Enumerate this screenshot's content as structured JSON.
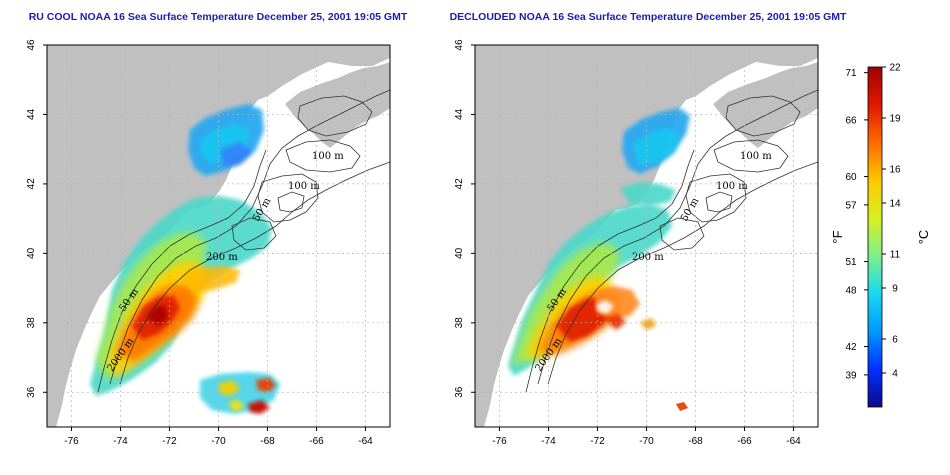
{
  "title_color": "#1c1cb4",
  "land_color": "#c0c0c0",
  "panels": [
    {
      "title": "RU COOL NOAA 16 Sea Surface Temperature December 25, 2001 19:05 GMT",
      "variant": "cool",
      "isobath_labels": [
        "100 m",
        "100 m",
        "50 m",
        "200 m",
        "50 m",
        "2000 m"
      ]
    },
    {
      "title": "DECLOUDED NOAA 16 Sea Surface Temperature December 25, 2001 19:05 GMT",
      "variant": "declouded",
      "isobath_labels": [
        "100 m",
        "100 m",
        "50 m",
        "200 m",
        "50 m",
        "2000 m"
      ]
    }
  ],
  "map_axes": {
    "lon_range": [
      -77,
      -63
    ],
    "lat_range": [
      35,
      46
    ],
    "lon_ticks": [
      "-76",
      "-74",
      "-72",
      "-70",
      "-68",
      "-66",
      "-64"
    ],
    "lat_ticks": [
      "36",
      "38",
      "40",
      "42",
      "44",
      "46"
    ],
    "grid": "dotted"
  },
  "colorbar": {
    "fahrenheit_label": "°F",
    "celsius_label": "°C",
    "celsius_range": [
      2,
      22
    ],
    "fahrenheit_ticks": [
      "71",
      "66",
      "60",
      "57",
      "51",
      "48",
      "42",
      "39"
    ],
    "celsius_ticks": [
      "22",
      "19",
      "16",
      "14",
      "11",
      "9",
      "6",
      "4"
    ],
    "colors": [
      "#0a0a8c",
      "#0030ff",
      "#0098ff",
      "#19d8f0",
      "#7cf08a",
      "#d8f020",
      "#ffc800",
      "#ff6a00",
      "#e01800",
      "#a00000"
    ]
  }
}
